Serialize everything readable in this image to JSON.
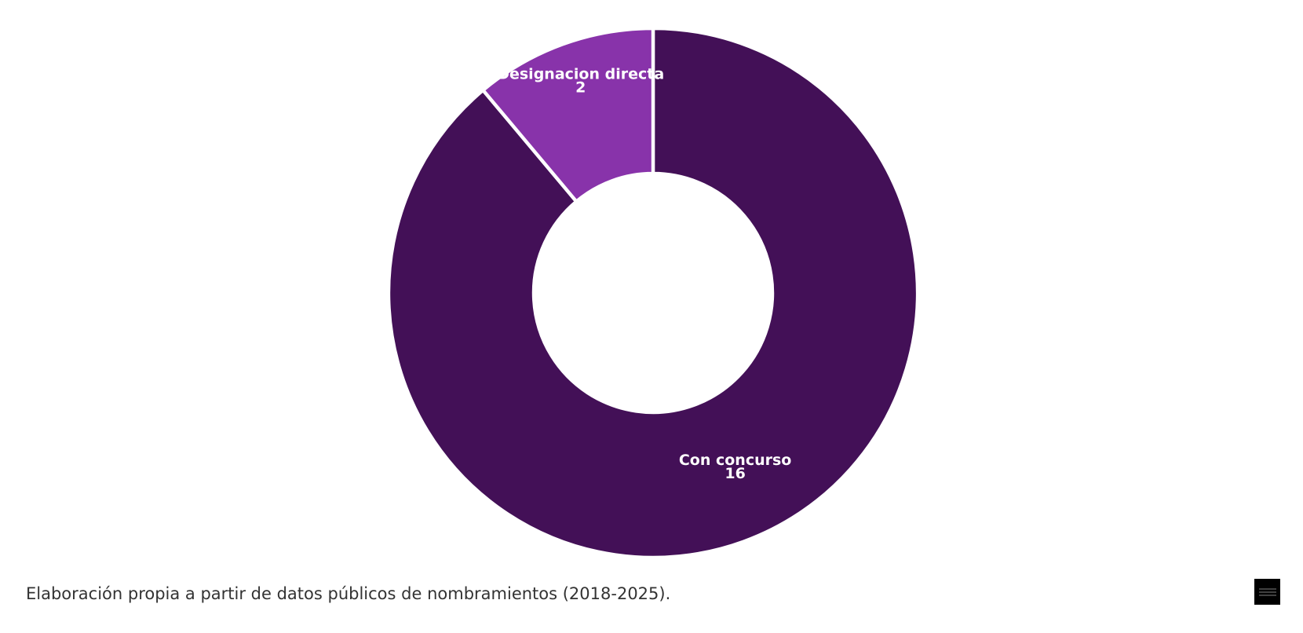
{
  "chart_data": {
    "type": "pie",
    "variant": "donut",
    "slices": [
      {
        "label": "Con concurso",
        "value": 16,
        "color": "#431057"
      },
      {
        "label": "Designacion directa",
        "value": 2,
        "color": "#8833aa"
      }
    ],
    "title": "",
    "legend": "none",
    "data_labels": "inside"
  },
  "footer": {
    "source_note": "Elaboración propia a partir de datos públicos de nombramientos (2018-2025).",
    "logo_icon": "brand-logo-icon"
  }
}
